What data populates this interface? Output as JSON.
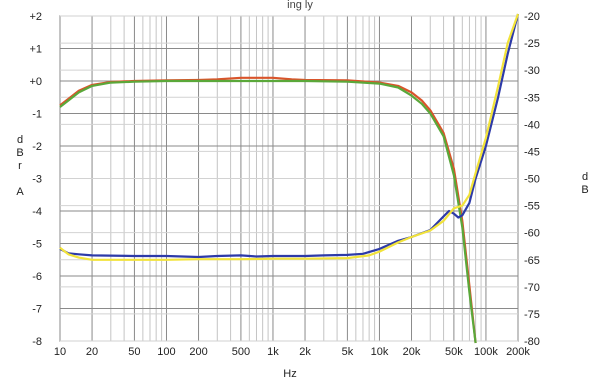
{
  "header_text": "ing                    ly",
  "chart_data": {
    "type": "line",
    "xlabel": "Hz",
    "ylabel_left": [
      "d",
      "B",
      "r",
      "",
      "A"
    ],
    "ylabel_right": [
      "d",
      "B"
    ],
    "x_scale": "log",
    "xlim": [
      10,
      200000
    ],
    "ylim_left": [
      -8,
      2
    ],
    "ylim_right": [
      -80,
      -20
    ],
    "grid": true,
    "x_ticks": [
      {
        "value": 10,
        "label": "10"
      },
      {
        "value": 20,
        "label": "20"
      },
      {
        "value": 50,
        "label": "50"
      },
      {
        "value": 100,
        "label": "100"
      },
      {
        "value": 200,
        "label": "200"
      },
      {
        "value": 500,
        "label": "500"
      },
      {
        "value": 1000,
        "label": "1k"
      },
      {
        "value": 2000,
        "label": "2k"
      },
      {
        "value": 5000,
        "label": "5k"
      },
      {
        "value": 10000,
        "label": "10k"
      },
      {
        "value": 20000,
        "label": "20k"
      },
      {
        "value": 50000,
        "label": "50k"
      },
      {
        "value": 100000,
        "label": "100k"
      },
      {
        "value": 200000,
        "label": "200k"
      }
    ],
    "y_left_ticks": [
      {
        "value": 2,
        "label": "+2"
      },
      {
        "value": 1,
        "label": "+1"
      },
      {
        "value": 0,
        "label": "+0"
      },
      {
        "value": -1,
        "label": "-1"
      },
      {
        "value": -2,
        "label": "-2"
      },
      {
        "value": -3,
        "label": "-3"
      },
      {
        "value": -4,
        "label": "-4"
      },
      {
        "value": -5,
        "label": "-5"
      },
      {
        "value": -6,
        "label": "-6"
      },
      {
        "value": -7,
        "label": "-7"
      },
      {
        "value": -8,
        "label": "-8"
      }
    ],
    "y_right_ticks": [
      {
        "value": -20,
        "label": "-20"
      },
      {
        "value": -25,
        "label": "-25"
      },
      {
        "value": -30,
        "label": "-30"
      },
      {
        "value": -35,
        "label": "-35"
      },
      {
        "value": -40,
        "label": "-40"
      },
      {
        "value": -45,
        "label": "-45"
      },
      {
        "value": -50,
        "label": "-50"
      },
      {
        "value": -55,
        "label": "-55"
      },
      {
        "value": -60,
        "label": "-60"
      },
      {
        "value": -65,
        "label": "-65"
      },
      {
        "value": -70,
        "label": "-70"
      },
      {
        "value": -75,
        "label": "-75"
      },
      {
        "value": -80,
        "label": "-80"
      }
    ],
    "series": [
      {
        "axis": "left",
        "color": "#d9542b",
        "points": [
          [
            10,
            -0.75
          ],
          [
            12,
            -0.55
          ],
          [
            15,
            -0.3
          ],
          [
            20,
            -0.12
          ],
          [
            30,
            -0.03
          ],
          [
            50,
            0.0
          ],
          [
            100,
            0.02
          ],
          [
            200,
            0.03
          ],
          [
            300,
            0.05
          ],
          [
            500,
            0.1
          ],
          [
            1000,
            0.1
          ],
          [
            1500,
            0.05
          ],
          [
            2000,
            0.03
          ],
          [
            5000,
            0.02
          ],
          [
            10000,
            -0.05
          ],
          [
            15000,
            -0.15
          ],
          [
            20000,
            -0.35
          ],
          [
            25000,
            -0.6
          ],
          [
            30000,
            -0.9
          ],
          [
            40000,
            -1.6
          ],
          [
            50000,
            -2.7
          ],
          [
            60000,
            -4.3
          ],
          [
            70000,
            -6.3
          ],
          [
            80000,
            -8.5
          ]
        ]
      },
      {
        "axis": "left",
        "color": "#5aa83a",
        "points": [
          [
            10,
            -0.8
          ],
          [
            12,
            -0.6
          ],
          [
            15,
            -0.35
          ],
          [
            20,
            -0.15
          ],
          [
            30,
            -0.05
          ],
          [
            50,
            -0.02
          ],
          [
            100,
            0.0
          ],
          [
            200,
            0.0
          ],
          [
            500,
            0.0
          ],
          [
            1000,
            0.0
          ],
          [
            2000,
            0.0
          ],
          [
            5000,
            -0.02
          ],
          [
            10000,
            -0.08
          ],
          [
            15000,
            -0.2
          ],
          [
            20000,
            -0.45
          ],
          [
            25000,
            -0.7
          ],
          [
            30000,
            -1.0
          ],
          [
            40000,
            -1.7
          ],
          [
            50000,
            -2.9
          ],
          [
            60000,
            -4.5
          ],
          [
            70000,
            -6.5
          ],
          [
            80000,
            -8.5
          ]
        ]
      },
      {
        "axis": "right",
        "color": "#2d3aa8",
        "points": [
          [
            10,
            -63.0
          ],
          [
            12,
            -63.8
          ],
          [
            15,
            -64.0
          ],
          [
            20,
            -64.2
          ],
          [
            50,
            -64.3
          ],
          [
            100,
            -64.3
          ],
          [
            200,
            -64.5
          ],
          [
            300,
            -64.3
          ],
          [
            500,
            -64.2
          ],
          [
            700,
            -64.4
          ],
          [
            1000,
            -64.3
          ],
          [
            2000,
            -64.3
          ],
          [
            3000,
            -64.2
          ],
          [
            5000,
            -64.1
          ],
          [
            7000,
            -63.9
          ],
          [
            10000,
            -63.0
          ],
          [
            15000,
            -61.5
          ],
          [
            20000,
            -60.8
          ],
          [
            30000,
            -59.5
          ],
          [
            40000,
            -57.0
          ],
          [
            45000,
            -56.0
          ],
          [
            50000,
            -56.5
          ],
          [
            55000,
            -57.2
          ],
          [
            60000,
            -56.8
          ],
          [
            70000,
            -54.5
          ],
          [
            80000,
            -50.0
          ],
          [
            100000,
            -44.0
          ],
          [
            130000,
            -35.0
          ],
          [
            160000,
            -27.0
          ],
          [
            200000,
            -19.0
          ]
        ]
      },
      {
        "axis": "right",
        "color": "#f2e33a",
        "points": [
          [
            10,
            -62.8
          ],
          [
            12,
            -64.0
          ],
          [
            15,
            -64.6
          ],
          [
            20,
            -65.0
          ],
          [
            50,
            -65.0
          ],
          [
            100,
            -65.0
          ],
          [
            200,
            -64.9
          ],
          [
            500,
            -64.9
          ],
          [
            1000,
            -64.8
          ],
          [
            2000,
            -64.8
          ],
          [
            5000,
            -64.7
          ],
          [
            8000,
            -64.2
          ],
          [
            10000,
            -63.5
          ],
          [
            15000,
            -61.8
          ],
          [
            20000,
            -60.8
          ],
          [
            30000,
            -59.6
          ],
          [
            40000,
            -57.8
          ],
          [
            50000,
            -55.5
          ],
          [
            60000,
            -55.0
          ],
          [
            70000,
            -53.0
          ],
          [
            80000,
            -49.0
          ],
          [
            100000,
            -42.5
          ],
          [
            130000,
            -33.0
          ],
          [
            160000,
            -25.0
          ],
          [
            200000,
            -19.0
          ]
        ]
      }
    ]
  }
}
